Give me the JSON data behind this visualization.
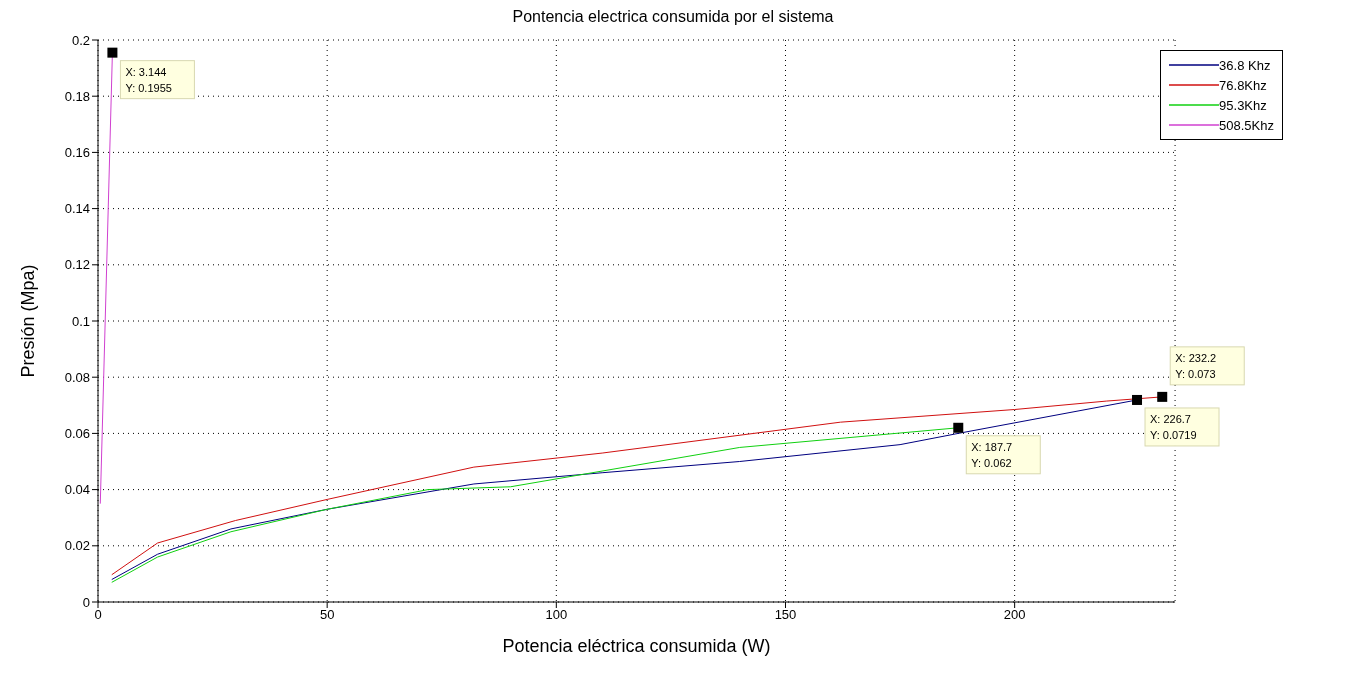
{
  "chart_data": {
    "type": "line",
    "title": "Pontencia electrica consumida por el sistema",
    "xlabel": "Potencia eléctrica consumida (W)",
    "ylabel": "Presión (Mpa)",
    "xlim": [
      0,
      235
    ],
    "xticks": [
      0,
      50,
      100,
      150,
      200
    ],
    "ylim": [
      0,
      0.2
    ],
    "yticks": [
      0,
      0.02,
      0.04,
      0.06,
      0.08,
      0.1,
      0.12,
      0.14,
      0.16,
      0.18,
      0.2
    ],
    "grid": true,
    "legend": "top right",
    "line_style": "solid",
    "series": [
      {
        "name": "36.8 Khz",
        "color": "#00007f",
        "x": [
          3,
          13,
          29,
          50,
          82,
          110,
          140,
          175,
          187.7,
          226.7
        ],
        "values": [
          0.008,
          0.017,
          0.026,
          0.033,
          0.042,
          0.046,
          0.05,
          0.056,
          0.06,
          0.0719
        ]
      },
      {
        "name": "76.8Khz",
        "color": "#d01010",
        "x": [
          3,
          13,
          30,
          50,
          82,
          110,
          162,
          200,
          220,
          232.2
        ],
        "values": [
          0.0097,
          0.021,
          0.029,
          0.0365,
          0.048,
          0.053,
          0.064,
          0.0685,
          0.0715,
          0.073
        ]
      },
      {
        "name": "95.3Khz",
        "color": "#10d010",
        "x": [
          3,
          13,
          29,
          50,
          72,
          90,
          140,
          187.7
        ],
        "values": [
          0.007,
          0.016,
          0.025,
          0.033,
          0.04,
          0.041,
          0.055,
          0.062
        ]
      },
      {
        "name": "508.5Khz",
        "color": "#d040d0",
        "x": [
          0.5,
          3.144
        ],
        "values": [
          0.035,
          0.1955
        ]
      }
    ],
    "annotations": [
      {
        "text": "X: 3.144\nY: 0.1955",
        "x": 3.144,
        "y": 0.1955
      },
      {
        "text": "X: 187.7\nY: 0.062",
        "x": 187.7,
        "y": 0.062
      },
      {
        "text": "X: 226.7\nY: 0.0719",
        "x": 226.7,
        "y": 0.0719
      },
      {
        "text": "X: 232.2\nY: 0.073",
        "x": 232.2,
        "y": 0.073
      }
    ]
  }
}
